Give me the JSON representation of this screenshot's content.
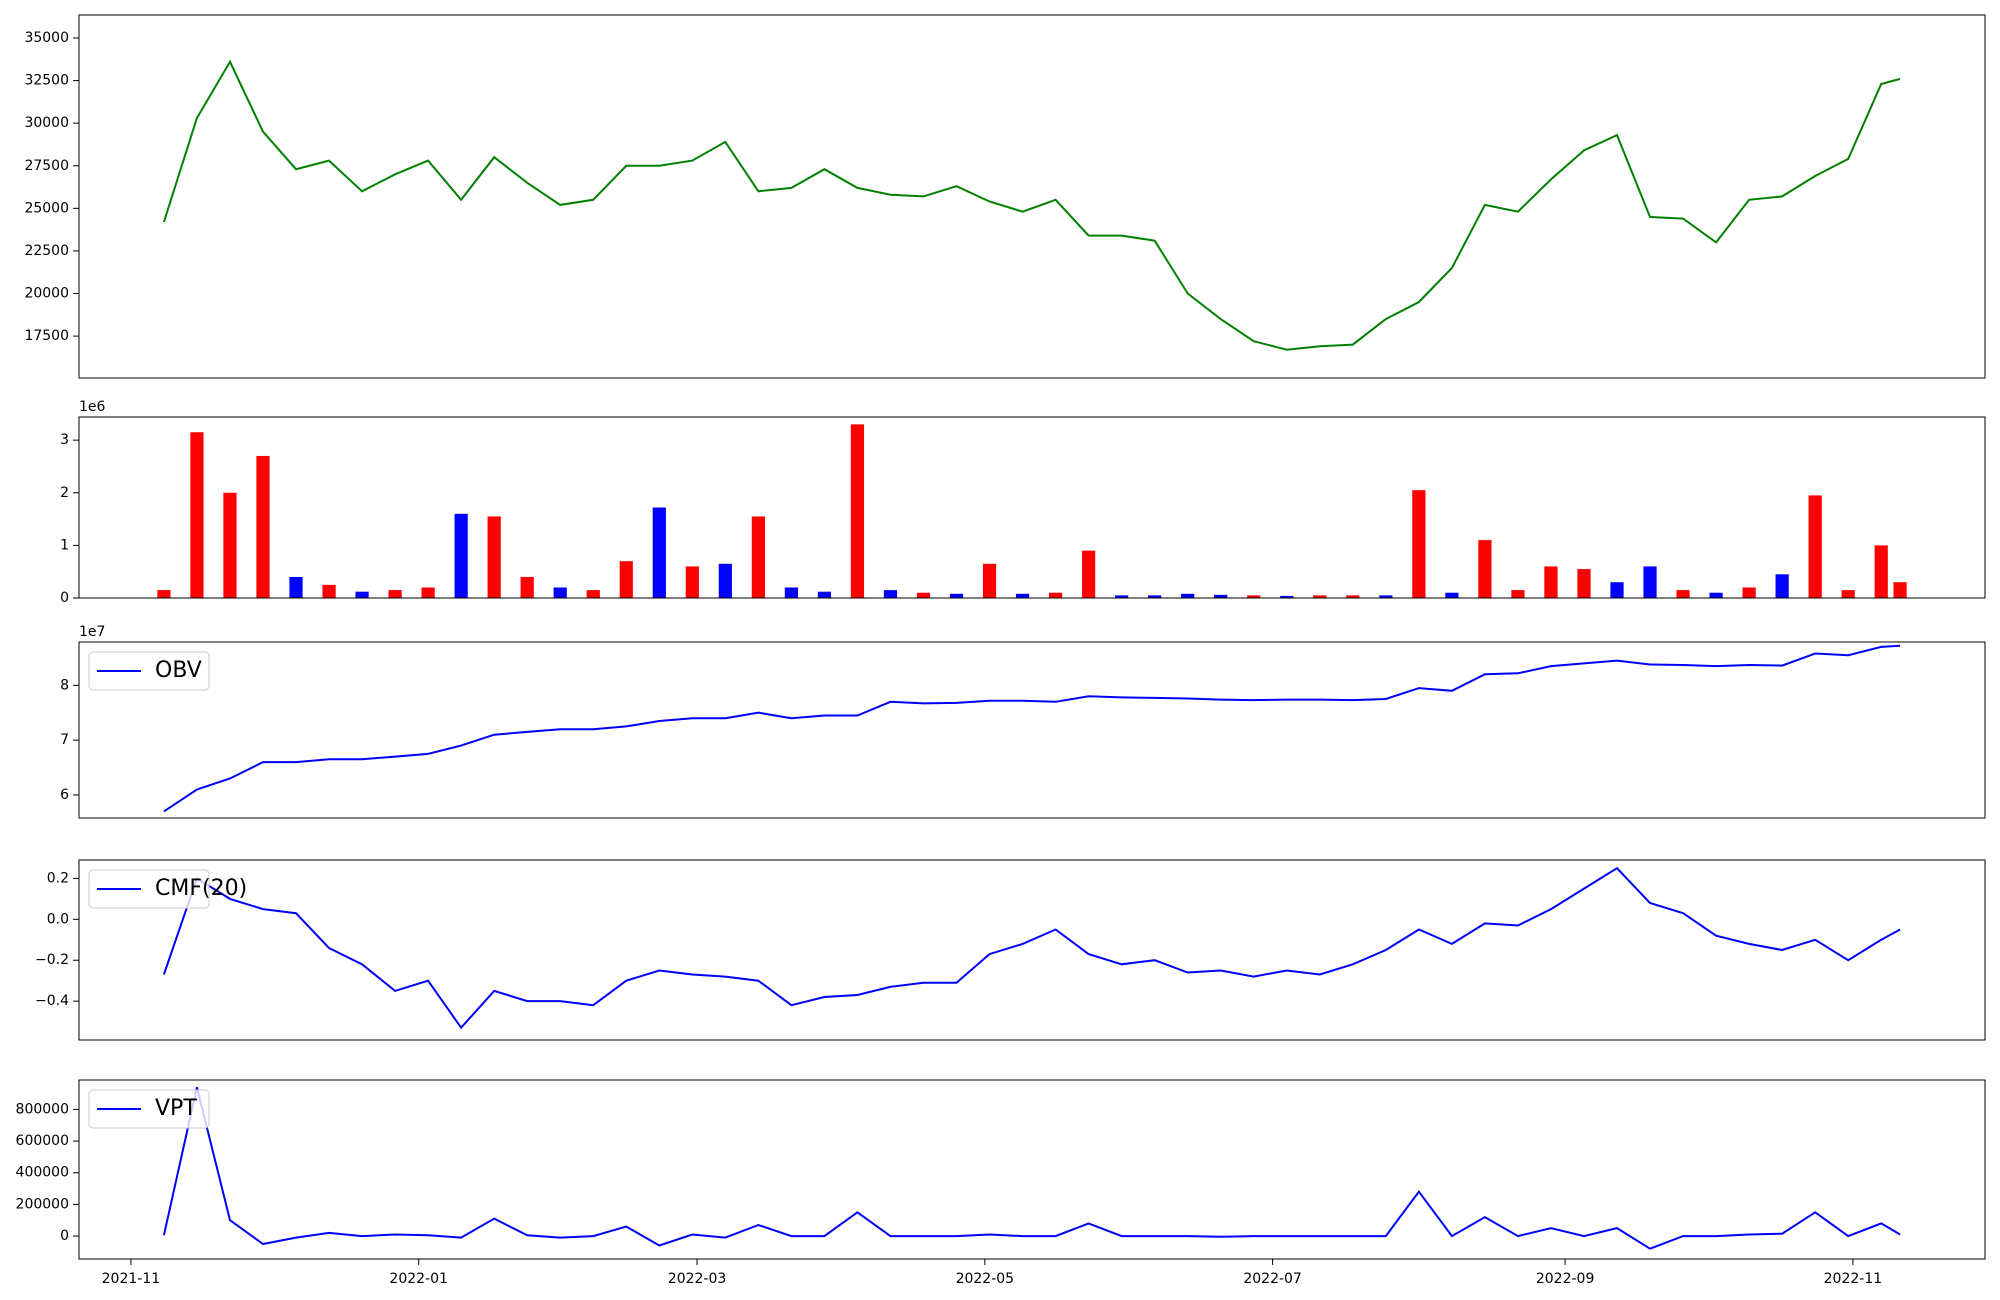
{
  "chart_data": [
    {
      "type": "line",
      "color": "#008000",
      "x": [
        7,
        14,
        21,
        28,
        35,
        42,
        49,
        56,
        63,
        70,
        77,
        84,
        91,
        98,
        105,
        112,
        119,
        126,
        133,
        140,
        147,
        154,
        161,
        168,
        175,
        182,
        189,
        196,
        203,
        210,
        217,
        224,
        231,
        238,
        245,
        252,
        259,
        266,
        273,
        280,
        287,
        294,
        301,
        308,
        315,
        322,
        329,
        336,
        343,
        350,
        357,
        364,
        371,
        375
      ],
      "values": [
        24200,
        30300,
        33600,
        29500,
        27300,
        27800,
        26000,
        27000,
        27800,
        25500,
        28000,
        26500,
        25200,
        25500,
        27500,
        27500,
        27800,
        28900,
        26000,
        26200,
        27300,
        26200,
        25800,
        25700,
        26300,
        25400,
        24800,
        25500,
        23400,
        23400,
        23100,
        20000,
        18500,
        17200,
        16700,
        16900,
        17000,
        18500,
        19500,
        21500,
        25200,
        24800,
        26700,
        28400,
        29300,
        24500,
        24400,
        23000,
        25500,
        25700,
        26900,
        27900,
        32300,
        32600
      ],
      "xlim": [
        -11,
        393
      ],
      "ylim": [
        15040,
        36350
      ],
      "yticks": [
        17500,
        20000,
        22500,
        25000,
        27500,
        30000,
        32500,
        35000
      ]
    },
    {
      "type": "bar",
      "offset_label": "1e6",
      "x": [
        7,
        14,
        21,
        28,
        35,
        42,
        49,
        56,
        63,
        70,
        77,
        84,
        91,
        98,
        105,
        112,
        119,
        126,
        133,
        140,
        147,
        154,
        161,
        168,
        175,
        182,
        189,
        196,
        203,
        210,
        217,
        224,
        231,
        238,
        245,
        252,
        259,
        266,
        273,
        280,
        287,
        294,
        301,
        308,
        315,
        322,
        329,
        336,
        343,
        350,
        357,
        364,
        371,
        375
      ],
      "values": [
        0.15,
        3.15,
        2.0,
        2.7,
        0.4,
        0.25,
        0.12,
        0.15,
        0.2,
        1.6,
        1.55,
        0.4,
        0.2,
        0.15,
        0.7,
        1.72,
        0.6,
        0.65,
        1.55,
        0.2,
        0.12,
        3.3,
        0.15,
        0.1,
        0.08,
        0.65,
        0.08,
        0.1,
        0.9,
        0.05,
        0.05,
        0.08,
        0.06,
        0.05,
        0.04,
        0.05,
        0.05,
        0.05,
        2.05,
        0.1,
        1.1,
        0.15,
        0.6,
        0.55,
        0.3,
        0.6,
        0.15,
        0.1,
        0.2,
        0.45,
        1.95,
        0.15,
        1.0,
        0.3
      ],
      "colors": [
        "red",
        "red",
        "red",
        "red",
        "blue",
        "red",
        "blue",
        "red",
        "red",
        "blue",
        "red",
        "red",
        "blue",
        "red",
        "red",
        "blue",
        "red",
        "blue",
        "red",
        "blue",
        "blue",
        "red",
        "blue",
        "red",
        "blue",
        "red",
        "blue",
        "red",
        "red",
        "blue",
        "blue",
        "blue",
        "blue",
        "red",
        "blue",
        "red",
        "red",
        "blue",
        "red",
        "blue",
        "red",
        "red",
        "red",
        "red",
        "blue",
        "blue",
        "red",
        "blue",
        "red",
        "blue",
        "red",
        "red",
        "red",
        "red"
      ],
      "xlim": [
        -11,
        393
      ],
      "ylim": [
        0,
        3.44
      ],
      "yticks": [
        0,
        1,
        2,
        3
      ]
    },
    {
      "type": "line",
      "offset_label": "1e7",
      "legend": "upper left",
      "x": [
        7,
        14,
        21,
        28,
        35,
        42,
        49,
        56,
        63,
        70,
        77,
        84,
        91,
        98,
        105,
        112,
        119,
        126,
        133,
        140,
        147,
        154,
        161,
        168,
        175,
        182,
        189,
        196,
        203,
        210,
        217,
        224,
        231,
        238,
        245,
        252,
        259,
        266,
        273,
        280,
        287,
        294,
        301,
        308,
        315,
        322,
        329,
        336,
        343,
        350,
        357,
        364,
        371,
        375
      ],
      "series": [
        {
          "name": "OBV",
          "color": "#0000ff",
          "values": [
            5.7,
            6.1,
            6.3,
            6.6,
            6.6,
            6.65,
            6.65,
            6.7,
            6.75,
            6.9,
            7.1,
            7.15,
            7.2,
            7.2,
            7.25,
            7.35,
            7.4,
            7.4,
            7.5,
            7.4,
            7.45,
            7.45,
            7.7,
            7.67,
            7.68,
            7.72,
            7.72,
            7.7,
            7.8,
            7.78,
            7.77,
            7.76,
            7.74,
            7.73,
            7.74,
            7.74,
            7.73,
            7.75,
            7.95,
            7.9,
            8.2,
            8.22,
            8.35,
            8.4,
            8.45,
            8.38,
            8.37,
            8.35,
            8.37,
            8.36,
            8.58,
            8.55,
            8.7,
            8.72
          ]
        }
      ],
      "xlim": [
        -11,
        393
      ],
      "ylim": [
        5.58,
        8.79
      ],
      "yticks": [
        6,
        7,
        8
      ]
    },
    {
      "type": "line",
      "legend": "upper left",
      "x": [
        7,
        14,
        21,
        28,
        35,
        42,
        49,
        56,
        63,
        70,
        77,
        84,
        91,
        98,
        105,
        112,
        119,
        126,
        133,
        140,
        147,
        154,
        161,
        168,
        175,
        182,
        189,
        196,
        203,
        210,
        217,
        224,
        231,
        238,
        245,
        252,
        259,
        266,
        273,
        280,
        287,
        294,
        301,
        308,
        315,
        322,
        329,
        336,
        343,
        350,
        357,
        364,
        371,
        375
      ],
      "series": [
        {
          "name": "CMF(20)",
          "color": "#0000ff",
          "values": [
            -0.27,
            0.2,
            0.1,
            0.05,
            0.03,
            -0.14,
            -0.22,
            -0.35,
            -0.3,
            -0.53,
            -0.35,
            -0.4,
            -0.4,
            -0.42,
            -0.3,
            -0.25,
            -0.27,
            -0.28,
            -0.3,
            -0.42,
            -0.38,
            -0.37,
            -0.33,
            -0.31,
            -0.31,
            -0.17,
            -0.12,
            -0.05,
            -0.17,
            -0.22,
            -0.2,
            -0.26,
            -0.25,
            -0.28,
            -0.25,
            -0.27,
            -0.22,
            -0.15,
            -0.05,
            -0.12,
            -0.02,
            -0.03,
            0.05,
            0.15,
            0.25,
            0.08,
            0.03,
            -0.08,
            -0.12,
            -0.15,
            -0.1,
            -0.2,
            -0.1,
            -0.05
          ]
        }
      ],
      "xlim": [
        -11,
        393
      ],
      "ylim": [
        -0.59,
        0.29
      ],
      "yticks": [
        {
          "value": -0.4,
          "label": "−0.4"
        },
        {
          "value": -0.2,
          "label": "−0.2"
        },
        {
          "value": 0,
          "label": "0.0"
        },
        0.2
      ]
    },
    {
      "type": "line",
      "legend": "upper left",
      "x": [
        7,
        14,
        21,
        28,
        35,
        42,
        49,
        56,
        63,
        70,
        77,
        84,
        91,
        98,
        105,
        112,
        119,
        126,
        133,
        140,
        147,
        154,
        161,
        168,
        175,
        182,
        189,
        196,
        203,
        210,
        217,
        224,
        231,
        238,
        245,
        252,
        259,
        266,
        273,
        280,
        287,
        294,
        301,
        308,
        315,
        322,
        329,
        336,
        343,
        350,
        357,
        364,
        371,
        375
      ],
      "series": [
        {
          "name": "VPT",
          "color": "#0000ff",
          "values": [
            5000,
            940000,
            100000,
            -50000,
            -10000,
            20000,
            0,
            10000,
            5000,
            -10000,
            110000,
            5000,
            -10000,
            0,
            60000,
            -60000,
            10000,
            -10000,
            70000,
            0,
            0,
            150000,
            0,
            0,
            0,
            10000,
            0,
            0,
            80000,
            0,
            0,
            0,
            -5000,
            0,
            0,
            0,
            0,
            0,
            280000,
            0,
            120000,
            0,
            50000,
            0,
            50000,
            -80000,
            0,
            0,
            10000,
            15000,
            150000,
            0,
            80000,
            10000
          ]
        }
      ],
      "xlim": [
        -11,
        393
      ],
      "ylim": [
        -145000,
        986000
      ],
      "yticks": [
        0,
        200000,
        400000,
        600000,
        800000
      ],
      "xticks": [
        {
          "value": 0,
          "label": "2021-11"
        },
        {
          "value": 61,
          "label": "2022-01"
        },
        {
          "value": 120,
          "label": "2022-03"
        },
        {
          "value": 181,
          "label": "2022-05"
        },
        {
          "value": 242,
          "label": "2022-07"
        },
        {
          "value": 304,
          "label": "2022-09"
        },
        {
          "value": 365,
          "label": "2022-11"
        }
      ]
    }
  ]
}
